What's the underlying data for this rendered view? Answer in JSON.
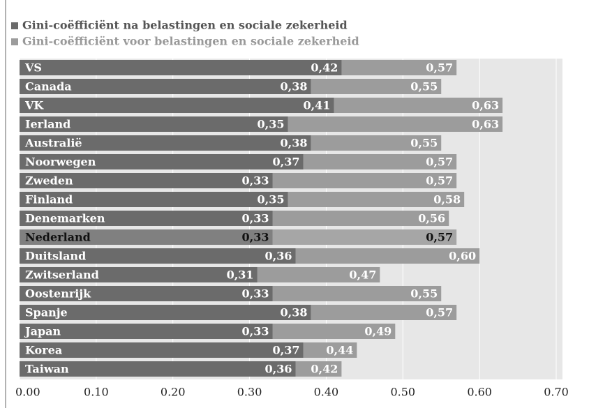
{
  "chart_data": {
    "type": "bar",
    "orientation": "horizontal",
    "categories": [
      "VS",
      "Canada",
      "VK",
      "Ierland",
      "Australië",
      "Noorwegen",
      "Zweden",
      "Finland",
      "Denemarken",
      "Nederland",
      "Duitsland",
      "Zwitserland",
      "Oostenrijk",
      "Spanje",
      "Japan",
      "Korea",
      "Taiwan"
    ],
    "series": [
      {
        "name": "Gini-coëfficiënt na belastingen en sociale zekerheid",
        "color": "#6b6b6b",
        "values": [
          0.42,
          0.38,
          0.41,
          0.35,
          0.38,
          0.37,
          0.33,
          0.35,
          0.33,
          0.33,
          0.36,
          0.31,
          0.33,
          0.38,
          0.33,
          0.37,
          0.36
        ],
        "value_labels": [
          "0,42",
          "0,38",
          "0,41",
          "0,35",
          "0,38",
          "0,37",
          "0,33",
          "0,35",
          "0,33",
          "0,33",
          "0,36",
          "0,31",
          "0,33",
          "0,38",
          "0,33",
          "0,37",
          "0,36"
        ]
      },
      {
        "name": "Gini-coëfficiënt voor belastingen en sociale zekerheid",
        "color": "#9c9c9c",
        "values": [
          0.57,
          0.55,
          0.63,
          0.63,
          0.55,
          0.57,
          0.57,
          0.58,
          0.56,
          0.57,
          0.6,
          0.47,
          0.55,
          0.57,
          0.49,
          0.44,
          0.42
        ],
        "value_labels": [
          "0,57",
          "0,55",
          "0,63",
          "0,63",
          "0,55",
          "0,57",
          "0,57",
          "0,58",
          "0,56",
          "0,57",
          "0,60",
          "0,47",
          "0,55",
          "0,57",
          "0,49",
          "0,44",
          "0,42"
        ]
      }
    ],
    "highlight_category": 9,
    "xlim": [
      0,
      0.7
    ],
    "xticks": [
      {
        "value": 0,
        "label": "0.00"
      },
      {
        "value": 0.1,
        "label": "0.10"
      },
      {
        "value": 0.2,
        "label": "0.20"
      },
      {
        "value": 0.3,
        "label": "0.30"
      },
      {
        "value": 0.4,
        "label": "0.40"
      },
      {
        "value": 0.5,
        "label": "0.50"
      },
      {
        "value": 0.6,
        "label": "0.60"
      },
      {
        "value": 0.7,
        "label": "0.70"
      }
    ],
    "grid": true,
    "legend": "top-left"
  }
}
